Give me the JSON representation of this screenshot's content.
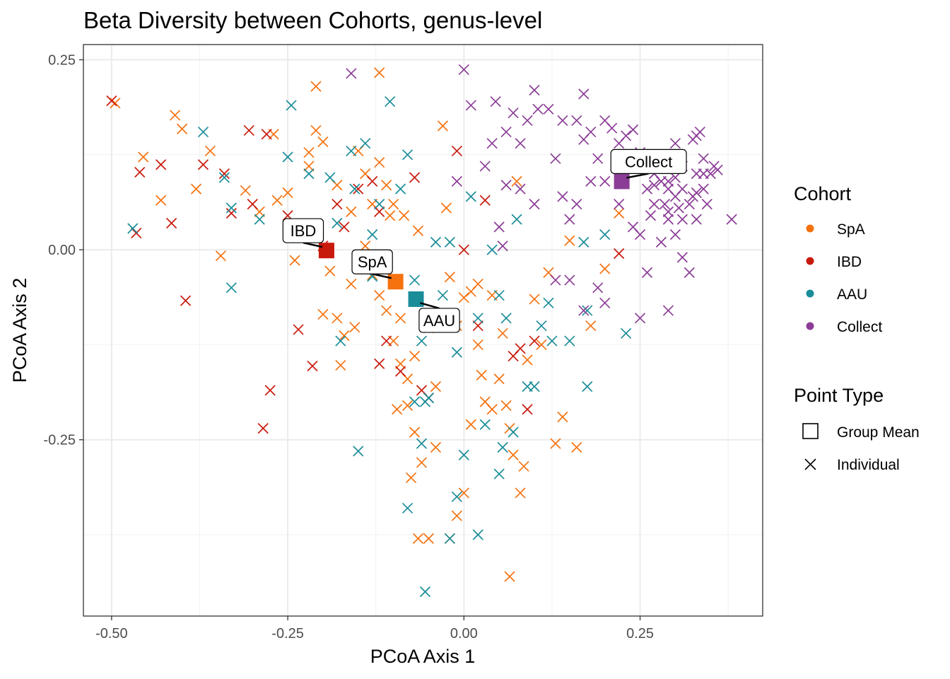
{
  "chart_data": {
    "type": "scatter",
    "title": "Beta Diversity between Cohorts, genus-level",
    "xlabel": "PCoA Axis 1",
    "ylabel": "PCoA Axis 2",
    "xlim": [
      -0.54,
      0.424
    ],
    "ylim": [
      -0.482,
      0.27
    ],
    "xticks": [
      -0.5,
      -0.25,
      0.0,
      0.25
    ],
    "xtick_labels": [
      "-0.50",
      "-0.25",
      "0.00",
      "0.25"
    ],
    "yticks": [
      -0.25,
      0.0,
      0.25
    ],
    "ytick_labels": [
      "-0.25",
      "0.00",
      "0.25"
    ],
    "grid": true,
    "legend_position": "right",
    "legend": {
      "cohort_title": "Cohort",
      "point_type_title": "Point Type",
      "point_types": [
        "Group Mean",
        "Individual"
      ]
    },
    "colors": {
      "SpA": "#f5720f",
      "IBD": "#c81a0c",
      "AAU": "#1a8d99",
      "Collect": "#8b3d96"
    },
    "series": [
      {
        "name": "SpA",
        "mean": [
          -0.097,
          -0.042
        ],
        "points": [
          [
            -0.495,
            0.193
          ],
          [
            -0.455,
            0.122
          ],
          [
            -0.43,
            0.065
          ],
          [
            -0.41,
            0.177
          ],
          [
            -0.4,
            0.159
          ],
          [
            -0.38,
            0.08
          ],
          [
            -0.36,
            0.13
          ],
          [
            -0.345,
            -0.008
          ],
          [
            -0.31,
            0.078
          ],
          [
            -0.29,
            0.05
          ],
          [
            -0.27,
            0.152
          ],
          [
            -0.265,
            0.065
          ],
          [
            -0.25,
            0.075
          ],
          [
            -0.24,
            -0.014
          ],
          [
            -0.22,
            0.128
          ],
          [
            -0.22,
            0.11
          ],
          [
            -0.21,
            0.215
          ],
          [
            -0.21,
            0.157
          ],
          [
            -0.2,
            0.142
          ],
          [
            -0.2,
            -0.085
          ],
          [
            -0.19,
            -0.028
          ],
          [
            -0.18,
            -0.09
          ],
          [
            -0.175,
            -0.152
          ],
          [
            -0.17,
            -0.113
          ],
          [
            -0.16,
            -0.045
          ],
          [
            -0.155,
            -0.102
          ],
          [
            -0.15,
            0.13
          ],
          [
            -0.14,
            0.1
          ],
          [
            -0.14,
            0.005
          ],
          [
            -0.13,
            -0.033
          ],
          [
            -0.12,
            0.233
          ],
          [
            -0.12,
            0.115
          ],
          [
            -0.11,
            0.085
          ],
          [
            -0.11,
            -0.08
          ],
          [
            -0.1,
            -0.12
          ],
          [
            -0.095,
            -0.21
          ],
          [
            -0.09,
            -0.15
          ],
          [
            -0.08,
            -0.205
          ],
          [
            -0.075,
            -0.3
          ],
          [
            -0.07,
            -0.24
          ],
          [
            -0.06,
            -0.28
          ],
          [
            -0.05,
            -0.103
          ],
          [
            -0.04,
            -0.26
          ],
          [
            -0.03,
            0.163
          ],
          [
            -0.025,
            0.055
          ],
          [
            -0.02,
            -0.036
          ],
          [
            -0.01,
            -0.1
          ],
          [
            0.0,
            -0.063
          ],
          [
            0.01,
            -0.23
          ],
          [
            0.02,
            -0.125
          ],
          [
            0.025,
            -0.165
          ],
          [
            0.03,
            -0.2
          ],
          [
            0.04,
            -0.21
          ],
          [
            0.05,
            -0.17
          ],
          [
            0.055,
            -0.11
          ],
          [
            0.06,
            -0.205
          ],
          [
            0.065,
            -0.235
          ],
          [
            0.07,
            -0.27
          ],
          [
            0.075,
            0.09
          ],
          [
            0.08,
            -0.32
          ],
          [
            0.085,
            -0.285
          ],
          [
            0.09,
            -0.145
          ],
          [
            0.1,
            -0.065
          ],
          [
            0.11,
            -0.125
          ],
          [
            0.12,
            -0.03
          ],
          [
            0.13,
            -0.255
          ],
          [
            0.14,
            -0.22
          ],
          [
            0.15,
            0.012
          ],
          [
            0.16,
            -0.26
          ],
          [
            0.18,
            -0.1
          ],
          [
            0.2,
            -0.025
          ],
          [
            0.22,
            0.048
          ],
          [
            -0.12,
            -0.06
          ],
          [
            -0.1,
            0.06
          ],
          [
            -0.09,
            -0.09
          ],
          [
            -0.08,
            -0.17
          ],
          [
            -0.07,
            -0.14
          ],
          [
            -0.065,
            -0.38
          ],
          [
            -0.05,
            -0.38
          ],
          [
            -0.04,
            -0.18
          ],
          [
            -0.02,
            -0.38
          ],
          [
            -0.01,
            -0.35
          ],
          [
            0.0,
            -0.32
          ],
          [
            0.065,
            -0.43
          ],
          [
            0.01,
            -0.055
          ],
          [
            0.04,
            -0.06
          ],
          [
            0.02,
            -0.045
          ],
          [
            -0.18,
            0.085
          ],
          [
            -0.16,
            0.05
          ],
          [
            -0.13,
            0.06
          ],
          [
            -0.105,
            0.045
          ],
          [
            -0.085,
            0.045
          ],
          [
            -0.065,
            0.025
          ]
        ]
      },
      {
        "name": "IBD",
        "mean": [
          -0.195,
          -0.001
        ],
        "points": [
          [
            -0.5,
            0.196
          ],
          [
            -0.46,
            0.102
          ],
          [
            -0.43,
            0.112
          ],
          [
            -0.465,
            0.022
          ],
          [
            -0.415,
            0.035
          ],
          [
            -0.395,
            -0.067
          ],
          [
            -0.37,
            0.112
          ],
          [
            -0.34,
            0.1
          ],
          [
            -0.33,
            0.048
          ],
          [
            -0.305,
            0.157
          ],
          [
            -0.3,
            0.06
          ],
          [
            -0.28,
            0.152
          ],
          [
            -0.275,
            -0.185
          ],
          [
            -0.285,
            -0.235
          ],
          [
            -0.25,
            0.045
          ],
          [
            -0.235,
            -0.105
          ],
          [
            -0.215,
            -0.153
          ],
          [
            -0.13,
            0.09
          ],
          [
            -0.12,
            0.05
          ],
          [
            -0.11,
            -0.12
          ],
          [
            -0.12,
            -0.15
          ],
          [
            -0.09,
            -0.16
          ],
          [
            -0.07,
            0.095
          ],
          [
            -0.06,
            -0.185
          ],
          [
            -0.05,
            -0.195
          ],
          [
            -0.01,
            0.13
          ],
          [
            0.0,
            -0.0
          ],
          [
            0.02,
            -0.1
          ],
          [
            0.03,
            0.065
          ],
          [
            0.08,
            -0.13
          ],
          [
            0.09,
            -0.21
          ],
          [
            0.1,
            -0.12
          ],
          [
            0.22,
            -0.005
          ],
          [
            0.07,
            -0.14
          ],
          [
            -0.2,
            0.005
          ],
          [
            -0.18,
            0.06
          ],
          [
            -0.17,
            0.03
          ],
          [
            -0.15,
            0.08
          ]
        ]
      },
      {
        "name": "AAU",
        "mean": [
          -0.068,
          -0.065
        ],
        "points": [
          [
            -0.47,
            0.028
          ],
          [
            -0.37,
            0.155
          ],
          [
            -0.34,
            0.095
          ],
          [
            -0.33,
            0.055
          ],
          [
            -0.33,
            -0.05
          ],
          [
            -0.29,
            0.04
          ],
          [
            -0.25,
            0.122
          ],
          [
            -0.245,
            0.19
          ],
          [
            -0.22,
            0.1
          ],
          [
            -0.19,
            0.095
          ],
          [
            -0.18,
            0.035
          ],
          [
            -0.175,
            -0.12
          ],
          [
            -0.16,
            0.13
          ],
          [
            -0.155,
            0.08
          ],
          [
            -0.14,
            0.14
          ],
          [
            -0.13,
            0.02
          ],
          [
            -0.12,
            0.06
          ],
          [
            -0.105,
            0.195
          ],
          [
            -0.09,
            0.08
          ],
          [
            -0.08,
            0.125
          ],
          [
            -0.07,
            -0.04
          ],
          [
            -0.06,
            -0.12
          ],
          [
            -0.055,
            -0.2
          ],
          [
            -0.05,
            -0.195
          ],
          [
            -0.04,
            0.01
          ],
          [
            -0.03,
            -0.06
          ],
          [
            -0.02,
            0.01
          ],
          [
            -0.01,
            -0.135
          ],
          [
            0.0,
            -0.27
          ],
          [
            0.01,
            0.07
          ],
          [
            0.02,
            -0.09
          ],
          [
            0.03,
            -0.23
          ],
          [
            0.04,
            0.0
          ],
          [
            0.05,
            -0.06
          ],
          [
            0.055,
            -0.26
          ],
          [
            0.06,
            -0.09
          ],
          [
            0.07,
            -0.24
          ],
          [
            0.075,
            0.04
          ],
          [
            0.09,
            -0.18
          ],
          [
            0.1,
            -0.18
          ],
          [
            0.11,
            -0.1
          ],
          [
            0.12,
            -0.07
          ],
          [
            0.125,
            -0.12
          ],
          [
            0.15,
            -0.12
          ],
          [
            0.17,
            0.01
          ],
          [
            0.175,
            -0.18
          ],
          [
            0.2,
            0.02
          ],
          [
            0.23,
            -0.11
          ],
          [
            -0.055,
            -0.45
          ],
          [
            -0.08,
            -0.34
          ],
          [
            -0.02,
            -0.38
          ],
          [
            -0.01,
            -0.325
          ],
          [
            0.02,
            -0.375
          ],
          [
            0.05,
            -0.295
          ],
          [
            -0.15,
            -0.265
          ],
          [
            -0.06,
            -0.255
          ],
          [
            -0.13,
            -0.035
          ],
          [
            -0.07,
            -0.2
          ],
          [
            0.175,
            -0.08
          ]
        ]
      },
      {
        "name": "Collect",
        "mean": [
          0.224,
          0.09
        ],
        "points": [
          [
            -0.16,
            0.232
          ],
          [
            0.0,
            0.237
          ],
          [
            0.01,
            0.19
          ],
          [
            0.04,
            0.14
          ],
          [
            0.045,
            0.195
          ],
          [
            0.06,
            0.155
          ],
          [
            0.07,
            0.18
          ],
          [
            0.08,
            0.14
          ],
          [
            0.09,
            0.17
          ],
          [
            0.1,
            0.21
          ],
          [
            0.105,
            0.185
          ],
          [
            0.12,
            0.185
          ],
          [
            0.13,
            0.12
          ],
          [
            0.14,
            0.17
          ],
          [
            0.16,
            0.17
          ],
          [
            0.17,
            0.145
          ],
          [
            0.17,
            0.205
          ],
          [
            0.18,
            0.155
          ],
          [
            0.19,
            0.12
          ],
          [
            0.2,
            0.17
          ],
          [
            0.21,
            0.16
          ],
          [
            0.22,
            0.14
          ],
          [
            0.23,
            0.15
          ],
          [
            0.24,
            0.158
          ],
          [
            0.25,
            0.128
          ],
          [
            0.26,
            0.12
          ],
          [
            0.27,
            0.1
          ],
          [
            0.28,
            0.09
          ],
          [
            0.29,
            0.08
          ],
          [
            0.3,
            0.14
          ],
          [
            0.31,
            0.11
          ],
          [
            0.32,
            0.06
          ],
          [
            0.33,
            0.15
          ],
          [
            0.34,
            0.1
          ],
          [
            0.35,
            0.1
          ],
          [
            0.38,
            0.04
          ],
          [
            0.29,
            0.04
          ],
          [
            0.3,
            0.02
          ],
          [
            0.31,
            -0.01
          ],
          [
            0.32,
            -0.03
          ],
          [
            0.33,
            0.04
          ],
          [
            0.34,
            0.08
          ],
          [
            0.25,
            0.02
          ],
          [
            0.26,
            -0.03
          ],
          [
            0.27,
            0.06
          ],
          [
            0.28,
            0.01
          ],
          [
            0.2,
            0.09
          ],
          [
            0.22,
            0.06
          ],
          [
            0.24,
            0.03
          ],
          [
            0.14,
            0.07
          ],
          [
            0.15,
            0.04
          ],
          [
            0.16,
            0.06
          ],
          [
            0.18,
            0.09
          ],
          [
            0.13,
            -0.04
          ],
          [
            0.15,
            -0.04
          ],
          [
            0.19,
            -0.05
          ],
          [
            0.2,
            -0.07
          ],
          [
            0.25,
            -0.09
          ],
          [
            0.29,
            -0.08
          ],
          [
            0.17,
            -0.08
          ],
          [
            -0.01,
            0.09
          ],
          [
            0.03,
            0.11
          ],
          [
            0.06,
            0.085
          ],
          [
            0.05,
            0.03
          ],
          [
            0.055,
            0.005
          ],
          [
            0.1,
            0.06
          ],
          [
            0.08,
            0.08
          ],
          [
            0.29,
            0.09
          ],
          [
            0.31,
            0.08
          ],
          [
            0.33,
            0.1
          ],
          [
            0.325,
            0.07
          ],
          [
            0.335,
            0.155
          ],
          [
            0.325,
            0.145
          ],
          [
            0.3,
            0.07
          ],
          [
            0.31,
            0.04
          ],
          [
            0.27,
            0.1
          ],
          [
            0.28,
            0.11
          ],
          [
            0.285,
            0.06
          ],
          [
            0.27,
            0.085
          ],
          [
            0.33,
            0.075
          ],
          [
            0.34,
            0.12
          ],
          [
            0.355,
            0.11
          ],
          [
            0.3,
            0.095
          ],
          [
            0.29,
            0.05
          ],
          [
            0.265,
            0.045
          ],
          [
            0.305,
            0.055
          ],
          [
            0.36,
            0.105
          ],
          [
            0.345,
            0.06
          ],
          [
            0.26,
            0.08
          ]
        ]
      }
    ],
    "annotations": [
      {
        "text": "IBD",
        "series": "IBD"
      },
      {
        "text": "SpA",
        "series": "SpA"
      },
      {
        "text": "AAU",
        "series": "AAU"
      },
      {
        "text": "Collect",
        "series": "Collect"
      }
    ]
  }
}
